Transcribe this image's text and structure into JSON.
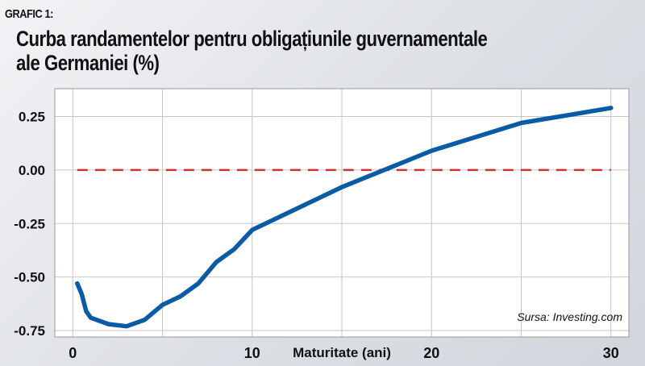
{
  "header": {
    "tag": "GRAFIC 1:",
    "title_line1": "Curba randamentelor pentru obligațiunile guvernamentale",
    "title_line2": "ale Germaniei (%)"
  },
  "source": "Sursa: Investing.com",
  "colors": {
    "series": "#0a5ba6",
    "reference": "#cc3333",
    "grid": "#c6c6c6",
    "plot_bg": "#ffffff"
  },
  "chart_data": {
    "type": "line",
    "title": "Curba randamentelor pentru obligațiunile guvernamentale ale Germaniei (%)",
    "xlabel": "Maturitate (ani)",
    "ylabel": "",
    "xlim": [
      -1,
      31
    ],
    "ylim": [
      -0.78,
      0.38
    ],
    "xticks": [
      0,
      10,
      20,
      30
    ],
    "xtick_labels": [
      "0",
      "10",
      "20",
      "30"
    ],
    "yticks": [
      0.25,
      0.0,
      -0.25,
      -0.5,
      -0.75
    ],
    "ytick_labels": [
      "0.25",
      "0.00",
      "-0.25",
      "-0.50",
      "-0.75"
    ],
    "grid": true,
    "series": [
      {
        "x": [
          0.25,
          0.5,
          0.75,
          1,
          2,
          3,
          4,
          5,
          6,
          7,
          8,
          9,
          10,
          15,
          20,
          25,
          30
        ],
        "values": [
          -0.53,
          -0.58,
          -0.66,
          -0.69,
          -0.72,
          -0.73,
          -0.7,
          -0.63,
          -0.59,
          -0.53,
          -0.43,
          -0.37,
          -0.28,
          -0.08,
          0.09,
          0.22,
          0.29
        ]
      }
    ],
    "reference_line": {
      "y": 0.0,
      "style": "dashed",
      "x_from": 0.25,
      "x_to": 30
    }
  }
}
